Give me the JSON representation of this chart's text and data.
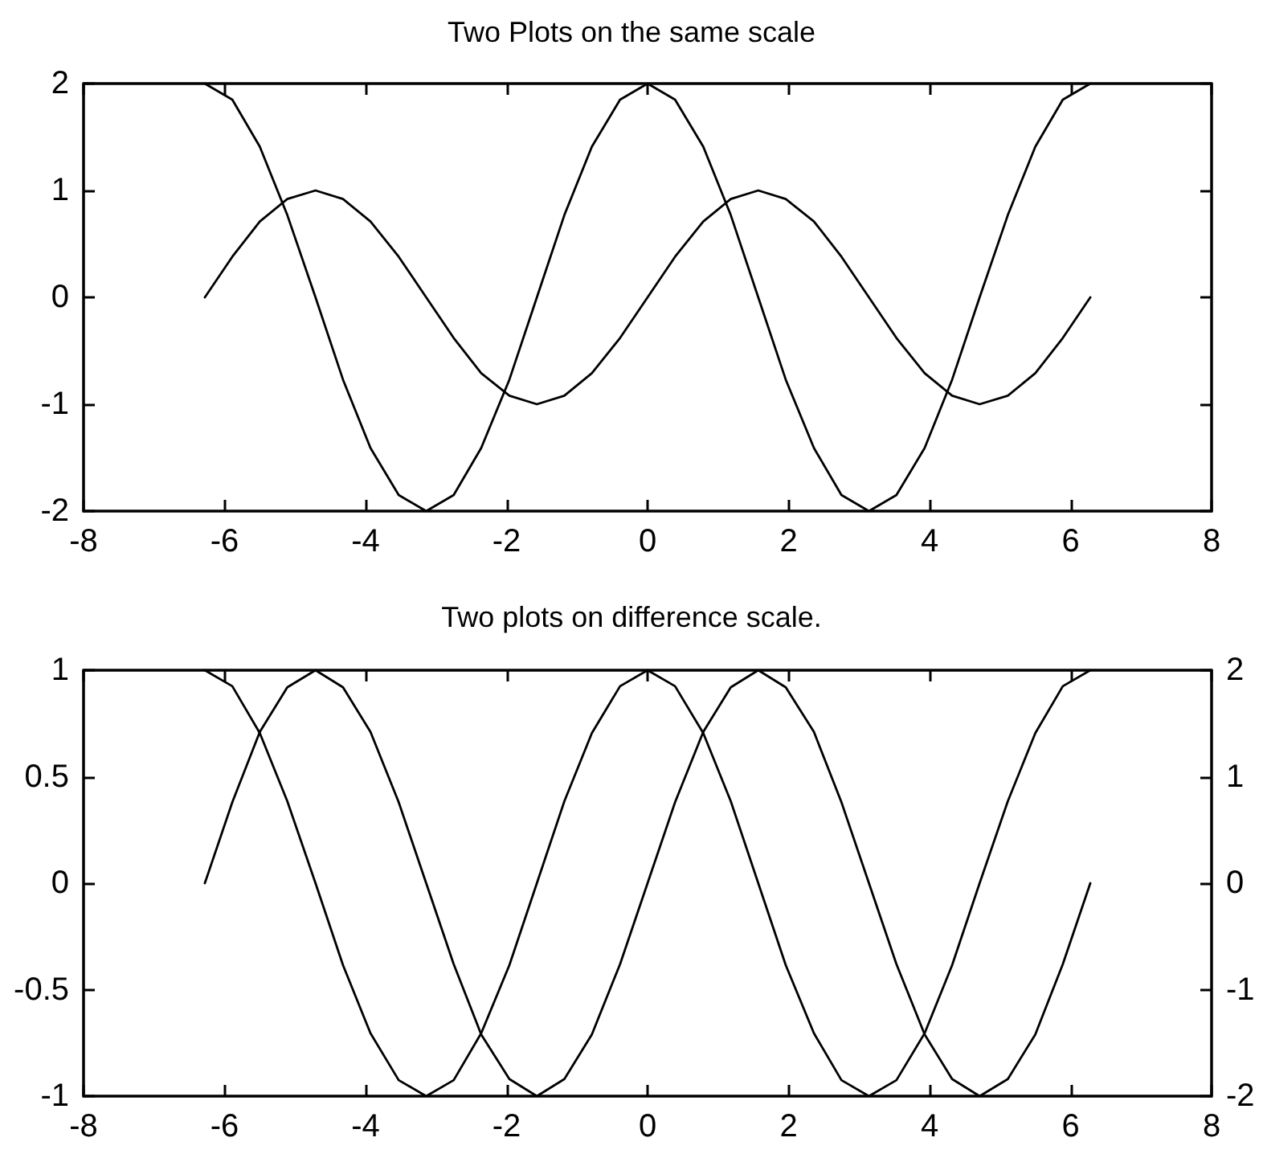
{
  "chart_data": [
    {
      "type": "line",
      "title": "Two Plots on the same scale",
      "x": [
        -6.28,
        -5.89,
        -5.5,
        -5.11,
        -4.71,
        -4.32,
        -3.93,
        -3.53,
        -3.14,
        -2.75,
        -2.36,
        -1.96,
        -1.57,
        -1.18,
        -0.79,
        -0.39,
        0,
        0.39,
        0.79,
        1.18,
        1.57,
        1.96,
        2.36,
        2.75,
        3.14,
        3.53,
        3.93,
        4.32,
        4.71,
        5.11,
        5.5,
        5.89,
        6.28
      ],
      "series": [
        {
          "color": "#000000",
          "values": [
            0,
            0.38,
            0.71,
            0.92,
            1,
            0.92,
            0.71,
            0.38,
            0,
            -0.38,
            -0.71,
            -0.92,
            -1,
            -0.92,
            -0.71,
            -0.38,
            0,
            0.38,
            0.71,
            0.92,
            1,
            0.92,
            0.71,
            0.38,
            0,
            -0.38,
            -0.71,
            -0.92,
            -1,
            -0.92,
            -0.71,
            -0.38,
            0
          ]
        },
        {
          "color": "#000000",
          "values": [
            2,
            1.85,
            1.41,
            0.77,
            0,
            -0.77,
            -1.41,
            -1.85,
            -2,
            -1.85,
            -1.41,
            -0.77,
            0,
            0.77,
            1.41,
            1.85,
            2,
            1.85,
            1.41,
            0.77,
            0,
            -0.77,
            -1.41,
            -1.85,
            -2,
            -1.85,
            -1.41,
            -0.77,
            0,
            0.77,
            1.41,
            1.85,
            2
          ]
        }
      ],
      "xlim": [
        -8,
        8
      ],
      "xticks": [
        -8,
        -6,
        -4,
        -2,
        0,
        2,
        4,
        6,
        8
      ],
      "ylim": [
        -2,
        2
      ],
      "yticks": [
        -2,
        -1,
        0,
        1,
        2
      ]
    },
    {
      "type": "line",
      "title": "Two plots on difference scale.",
      "x": [
        -6.28,
        -5.89,
        -5.5,
        -5.11,
        -4.71,
        -4.32,
        -3.93,
        -3.53,
        -3.14,
        -2.75,
        -2.36,
        -1.96,
        -1.57,
        -1.18,
        -0.79,
        -0.39,
        0,
        0.39,
        0.79,
        1.18,
        1.57,
        1.96,
        2.36,
        2.75,
        3.14,
        3.53,
        3.93,
        4.32,
        4.71,
        5.11,
        5.5,
        5.89,
        6.28
      ],
      "series": [
        {
          "color": "#000000",
          "values": [
            0,
            0.38,
            0.71,
            0.92,
            1,
            0.92,
            0.71,
            0.38,
            0,
            -0.38,
            -0.71,
            -0.92,
            -1,
            -0.92,
            -0.71,
            -0.38,
            0,
            0.38,
            0.71,
            0.92,
            1,
            0.92,
            0.71,
            0.38,
            0,
            -0.38,
            -0.71,
            -0.92,
            -1,
            -0.92,
            -0.71,
            -0.38,
            0
          ]
        },
        {
          "color": "#000000",
          "axis": "y2",
          "values": [
            2,
            1.85,
            1.41,
            0.77,
            0,
            -0.77,
            -1.41,
            -1.85,
            -2,
            -1.85,
            -1.41,
            -0.77,
            0,
            0.77,
            1.41,
            1.85,
            2,
            1.85,
            1.41,
            0.77,
            0,
            -0.77,
            -1.41,
            -1.85,
            -2,
            -1.85,
            -1.41,
            -0.77,
            0,
            0.77,
            1.41,
            1.85,
            2
          ]
        }
      ],
      "xlim": [
        -8,
        8
      ],
      "xticks": [
        -8,
        -6,
        -4,
        -2,
        0,
        2,
        4,
        6,
        8
      ],
      "ylim": [
        -1,
        1
      ],
      "yticks": [
        -1,
        -0.5,
        0,
        0.5,
        1
      ],
      "y2lim": [
        -2,
        2
      ],
      "y2ticks": [
        -2,
        -1,
        0,
        1,
        2
      ]
    }
  ]
}
